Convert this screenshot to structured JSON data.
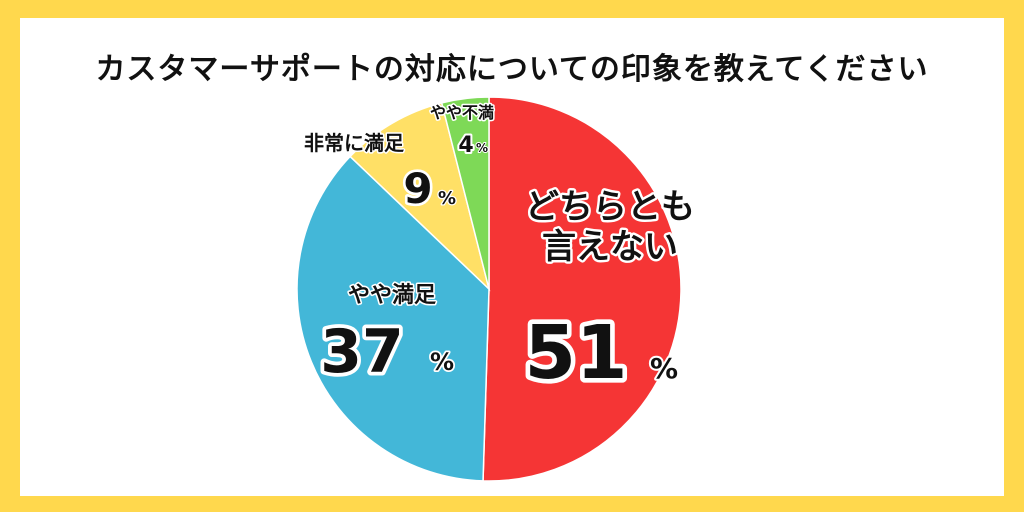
{
  "title": "カスタマーサポートの対応についての印象を教えてください",
  "chart_data": {
    "type": "pie",
    "title": "カスタマーサポートの対応についての印象を教えてください",
    "unit": "%",
    "slices": [
      {
        "label": "どちらとも言えない",
        "label_lines": [
          "どちらとも",
          "言えない"
        ],
        "value": 51,
        "color": "#f53535"
      },
      {
        "label": "やや満足",
        "label_lines": [
          "やや満足"
        ],
        "value": 37,
        "color": "#43b7d8"
      },
      {
        "label": "非常に満足",
        "label_lines": [
          "非常に満足"
        ],
        "value": 9,
        "color": "#ffe066"
      },
      {
        "label": "やや不満",
        "label_lines": [
          "やや不満"
        ],
        "value": 4,
        "color": "#7ed957"
      }
    ]
  }
}
